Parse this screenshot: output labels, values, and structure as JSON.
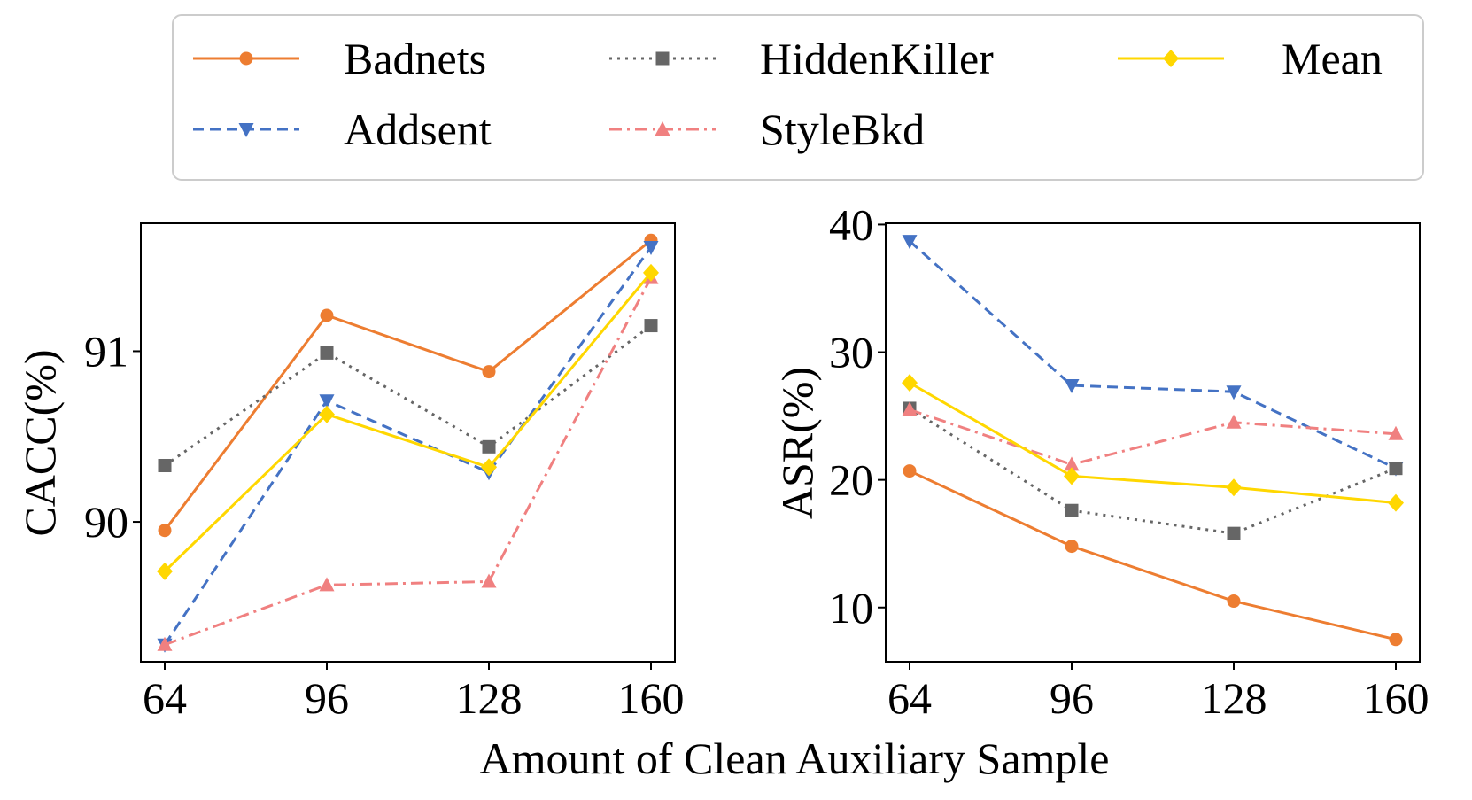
{
  "shared": {
    "xlabel": "Amount of Clean Auxiliary Sample"
  },
  "legend": {
    "entries": [
      {
        "name": "Badnets",
        "color": "#ED7D31",
        "dash": "solid",
        "marker": "circle"
      },
      {
        "name": "HiddenKiller",
        "color": "#666666",
        "dash": "dotted",
        "marker": "square"
      },
      {
        "name": "Mean",
        "color": "#FFD700",
        "dash": "solid",
        "marker": "diamond"
      },
      {
        "name": "Addsent",
        "color": "#4472C4",
        "dash": "dashed",
        "marker": "triangle-down"
      },
      {
        "name": "StyleBkd",
        "color": "#F08080",
        "dash": "dashdot",
        "marker": "triangle-up"
      }
    ]
  },
  "chart_data": [
    {
      "type": "line",
      "ylabel": "CACC(%)",
      "x": [
        64,
        96,
        128,
        160
      ],
      "xticks": [
        "64",
        "96",
        "128",
        "160"
      ],
      "yticks": [
        90,
        91
      ],
      "ylim": [
        89.18,
        91.75
      ],
      "series": [
        {
          "name": "Badnets",
          "values": [
            89.95,
            91.21,
            90.88,
            91.65
          ]
        },
        {
          "name": "Addsent",
          "values": [
            89.28,
            90.71,
            90.29,
            91.61
          ]
        },
        {
          "name": "HiddenKiller",
          "values": [
            90.33,
            90.99,
            90.44,
            91.15
          ]
        },
        {
          "name": "StyleBkd",
          "values": [
            89.28,
            89.63,
            89.65,
            91.43
          ]
        },
        {
          "name": "Mean",
          "values": [
            89.71,
            90.63,
            90.32,
            91.46
          ]
        }
      ]
    },
    {
      "type": "line",
      "ylabel": "ASR(%)",
      "x": [
        64,
        96,
        128,
        160
      ],
      "xticks": [
        "64",
        "96",
        "128",
        "160"
      ],
      "yticks": [
        10,
        20,
        30,
        40
      ],
      "ylim": [
        5.75,
        40.1
      ],
      "series": [
        {
          "name": "Badnets",
          "values": [
            20.7,
            14.8,
            10.5,
            7.5
          ]
        },
        {
          "name": "Addsent",
          "values": [
            38.7,
            27.4,
            26.9,
            20.9
          ]
        },
        {
          "name": "HiddenKiller",
          "values": [
            25.6,
            17.6,
            15.8,
            20.9
          ]
        },
        {
          "name": "StyleBkd",
          "values": [
            25.5,
            21.2,
            24.5,
            23.6
          ]
        },
        {
          "name": "Mean",
          "values": [
            27.6,
            20.3,
            19.4,
            18.2
          ]
        }
      ]
    }
  ]
}
